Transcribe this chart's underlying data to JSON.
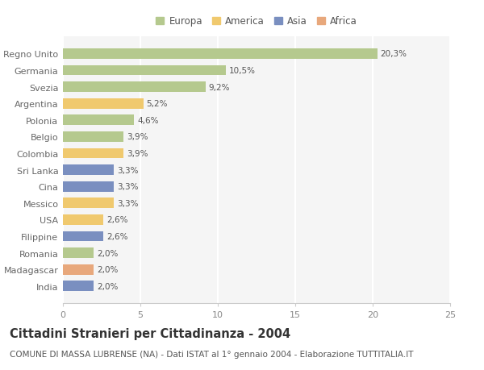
{
  "categories": [
    "Regno Unito",
    "Germania",
    "Svezia",
    "Argentina",
    "Polonia",
    "Belgio",
    "Colombia",
    "Sri Lanka",
    "Cina",
    "Messico",
    "USA",
    "Filippine",
    "Romania",
    "Madagascar",
    "India"
  ],
  "values": [
    20.3,
    10.5,
    9.2,
    5.2,
    4.6,
    3.9,
    3.9,
    3.3,
    3.3,
    3.3,
    2.6,
    2.6,
    2.0,
    2.0,
    2.0
  ],
  "labels": [
    "20,3%",
    "10,5%",
    "9,2%",
    "5,2%",
    "4,6%",
    "3,9%",
    "3,9%",
    "3,3%",
    "3,3%",
    "3,3%",
    "2,6%",
    "2,6%",
    "2,0%",
    "2,0%",
    "2,0%"
  ],
  "continents": [
    "Europa",
    "Europa",
    "Europa",
    "America",
    "Europa",
    "Europa",
    "America",
    "Asia",
    "Asia",
    "America",
    "America",
    "Asia",
    "Europa",
    "Africa",
    "Asia"
  ],
  "colors": {
    "Europa": "#b5c98e",
    "America": "#f0c96e",
    "Asia": "#7a8fc0",
    "Africa": "#e8a87c"
  },
  "legend_order": [
    "Europa",
    "America",
    "Asia",
    "Africa"
  ],
  "xlim": [
    0,
    25
  ],
  "xticks": [
    0,
    5,
    10,
    15,
    20,
    25
  ],
  "title": "Cittadini Stranieri per Cittadinanza - 2004",
  "subtitle": "COMUNE DI MASSA LUBRENSE (NA) - Dati ISTAT al 1° gennaio 2004 - Elaborazione TUTTITALIA.IT",
  "title_fontsize": 10.5,
  "subtitle_fontsize": 7.5,
  "background_color": "#ffffff",
  "bar_background": "#f5f5f5",
  "grid_color": "#ffffff"
}
